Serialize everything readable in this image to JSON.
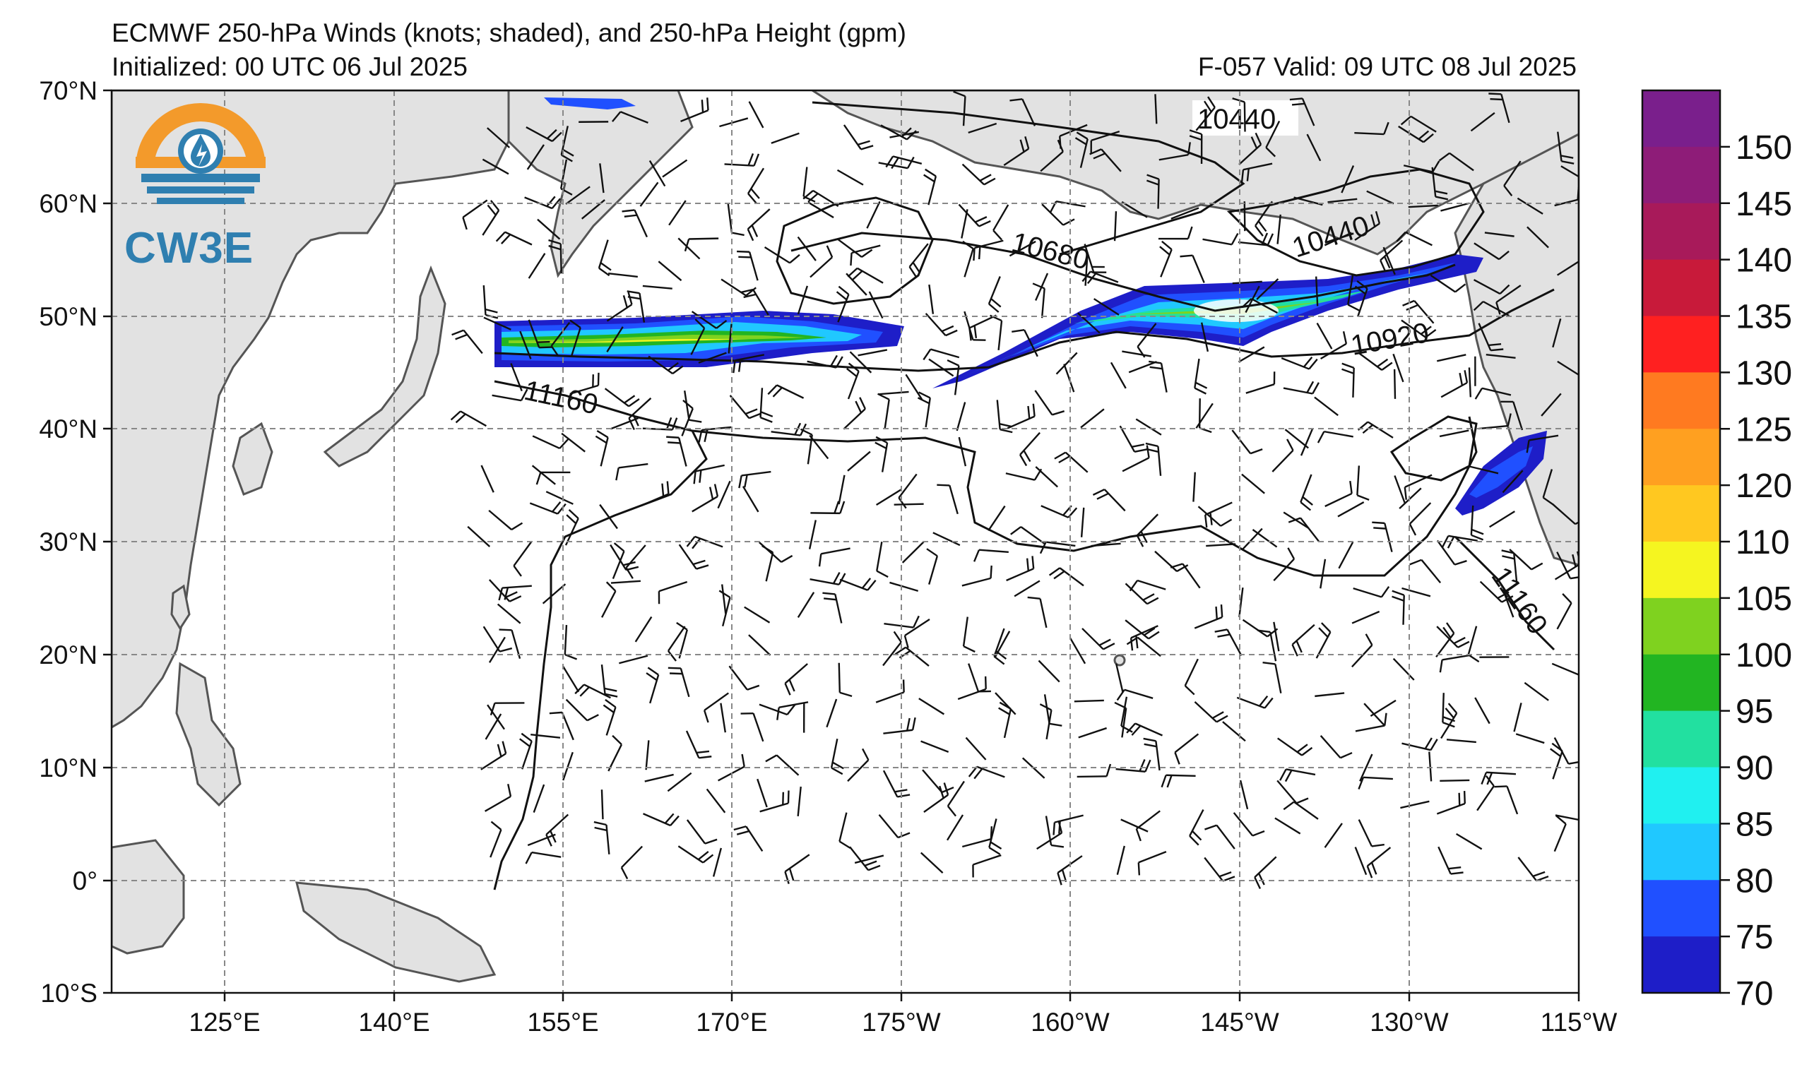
{
  "title": {
    "line1": "ECMWF 250-hPa Winds (knots; shaded), and 250-hPa Height (gpm)",
    "line2": "Initialized: 00 UTC 06 Jul 2025",
    "valid": "F-057  Valid: 09 UTC 08 Jul 2025"
  },
  "logo": {
    "text": "CW3E"
  },
  "axes": {
    "lat_labels": [
      "70°N",
      "60°N",
      "50°N",
      "40°N",
      "30°N",
      "20°N",
      "10°N",
      "0°",
      "10°S"
    ],
    "lon_labels": [
      "125°E",
      "140°E",
      "155°E",
      "170°E",
      "175°W",
      "160°W",
      "145°W",
      "130°W",
      "115°W"
    ]
  },
  "colorbar": {
    "labels": [
      "150",
      "145",
      "140",
      "135",
      "130",
      "125",
      "120",
      "110",
      "105",
      "100",
      "95",
      "90",
      "85",
      "80",
      "75",
      "70"
    ],
    "colors": [
      "#7a1f8c",
      "#8e1c78",
      "#a81a5a",
      "#c81a3a",
      "#ff2020",
      "#ff7a20",
      "#ffa020",
      "#ffc820",
      "#f5f520",
      "#7fd21f",
      "#22b522",
      "#22e0a0",
      "#20f0f0",
      "#20c8ff",
      "#2050ff",
      "#1e1ec8"
    ]
  },
  "contours": {
    "labels": [
      "10440",
      "10440",
      "10680",
      "10920",
      "11160",
      "11160"
    ]
  }
}
